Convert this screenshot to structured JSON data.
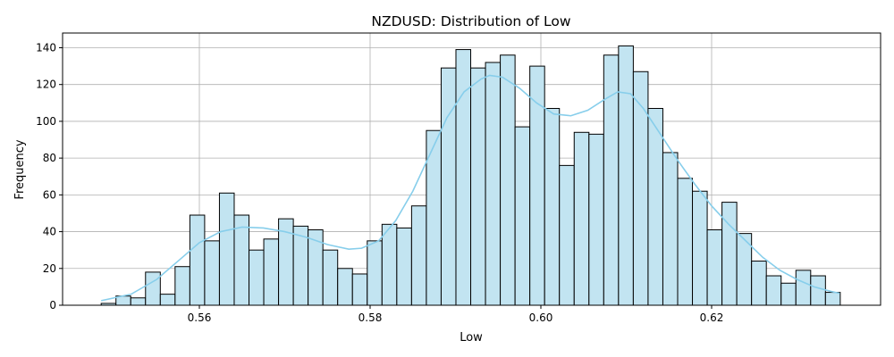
{
  "chart_data": {
    "type": "bar",
    "title": "NZDUSD: Distribution of Low",
    "xlabel": "Low",
    "ylabel": "Frequency",
    "xlim": [
      0.5472,
      0.9362
    ],
    "ylim": [
      0,
      148
    ],
    "xticks": [
      0.56,
      0.58,
      0.6,
      0.62
    ],
    "xtick_labels": [
      "0.56",
      "0.58",
      "0.60",
      "0.62"
    ],
    "yticks": [
      0,
      20,
      40,
      60,
      80,
      100,
      120,
      140
    ],
    "ytick_labels": [
      "0",
      "20",
      "40",
      "60",
      "80",
      "100",
      "120",
      "140"
    ],
    "grid": true,
    "bin_start": 0.5485,
    "bin_width": 0.0017313,
    "counts": [
      1,
      5,
      4,
      18,
      6,
      21,
      49,
      35,
      61,
      49,
      30,
      36,
      47,
      43,
      41,
      30,
      20,
      17,
      35,
      44,
      42,
      54,
      95,
      129,
      139,
      129,
      132,
      136,
      97,
      130,
      107,
      76,
      94,
      93,
      136,
      141,
      127,
      107,
      83,
      69,
      62,
      41,
      56,
      39,
      24,
      16,
      12,
      19,
      16,
      7
    ],
    "kde": {
      "x": [
        0.5485,
        0.552,
        0.555,
        0.558,
        0.56,
        0.5625,
        0.565,
        0.5675,
        0.57,
        0.5725,
        0.575,
        0.5775,
        0.579,
        0.581,
        0.583,
        0.585,
        0.587,
        0.589,
        0.591,
        0.593,
        0.594,
        0.5955,
        0.5975,
        0.5995,
        0.6015,
        0.6035,
        0.6055,
        0.6075,
        0.609,
        0.6105,
        0.612,
        0.614,
        0.616,
        0.618,
        0.62,
        0.622,
        0.624,
        0.626,
        0.628,
        0.63,
        0.632,
        0.634,
        0.635
      ],
      "y": [
        2.5,
        6,
        14,
        26,
        34,
        40,
        42.5,
        42,
        40,
        37,
        33,
        30.5,
        31,
        35,
        46,
        62,
        82,
        102,
        116,
        123,
        125,
        124,
        118,
        110,
        104,
        103,
        106,
        112,
        116,
        115,
        107,
        93,
        79,
        66,
        54,
        44,
        35,
        26,
        19,
        14,
        10,
        7.5,
        6.5
      ]
    },
    "colors": {
      "bar_fill": "#c2e4f1",
      "bar_edge": "#000000",
      "kde_line": "#87ceeb",
      "grid": "#b0b0b0"
    }
  }
}
